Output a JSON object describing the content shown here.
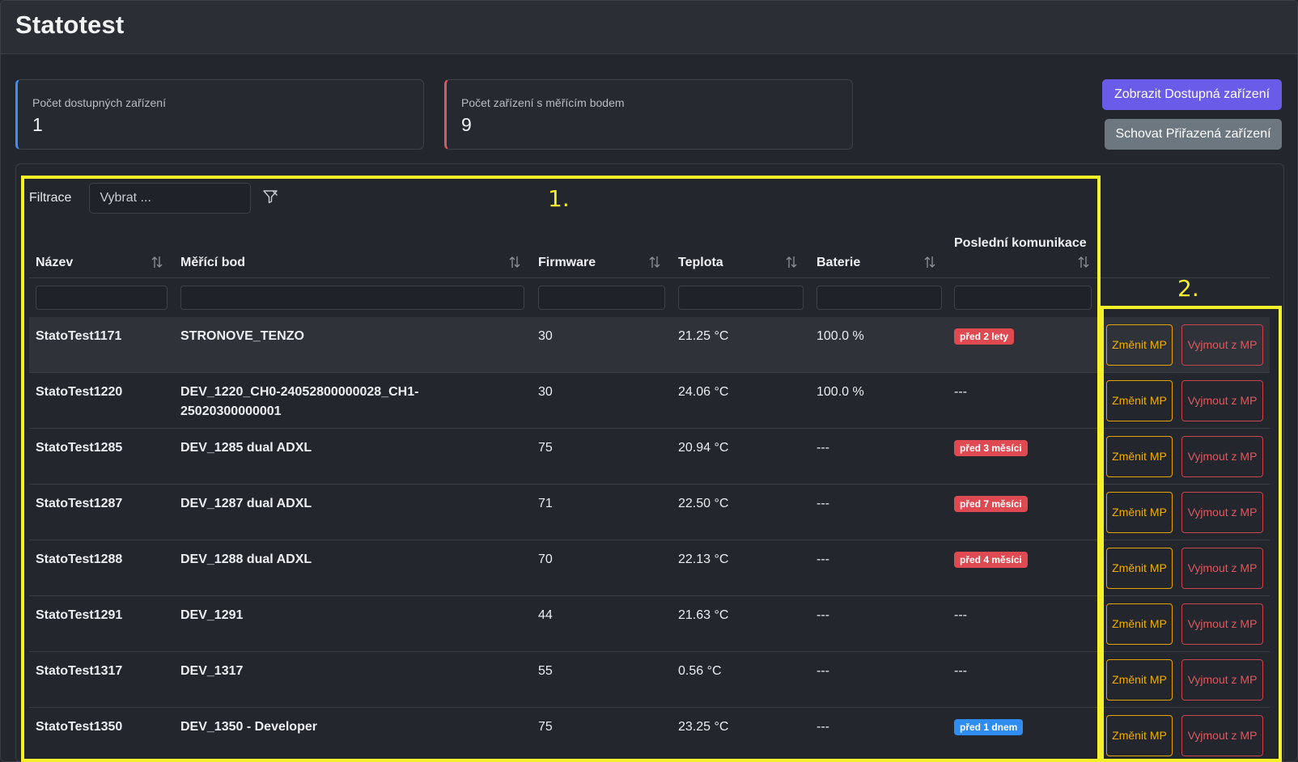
{
  "app": {
    "title": "Statotest"
  },
  "stats": [
    {
      "label": "Počet dostupných zařízení",
      "value": "1"
    },
    {
      "label": "Počet zařízení s měřícím bodem",
      "value": "9"
    }
  ],
  "actions": {
    "show_available": "Zobrazit Dostupná zařízení",
    "hide_assigned": "Schovat Přiřazená zařízení"
  },
  "filter": {
    "label": "Filtrace",
    "placeholder": "Vybrat ..."
  },
  "annotations": {
    "marker1": "1.",
    "marker2": "2."
  },
  "table": {
    "columns": [
      "Název",
      "Měřící bod",
      "Firmware",
      "Teplota",
      "Baterie",
      "Poslední komunikace"
    ],
    "rows": [
      {
        "name": "StatoTest1171",
        "point": "STRONOVE_TENZO",
        "firmware": "30",
        "temp": "21.25 °C",
        "battery": "100.0 %",
        "last": "před 2 lety",
        "last_type": "red"
      },
      {
        "name": "StatoTest1220",
        "point": "DEV_1220_CH0-24052800000028_CH1-25020300000001",
        "firmware": "30",
        "temp": "24.06 °C",
        "battery": "100.0 %",
        "last": "---",
        "last_type": "text"
      },
      {
        "name": "StatoTest1285",
        "point": "DEV_1285 dual ADXL",
        "firmware": "75",
        "temp": "20.94 °C",
        "battery": "---",
        "last": "před 3 měsíci",
        "last_type": "red"
      },
      {
        "name": "StatoTest1287",
        "point": "DEV_1287 dual ADXL",
        "firmware": "71",
        "temp": "22.50 °C",
        "battery": "---",
        "last": "před 7 měsíci",
        "last_type": "red"
      },
      {
        "name": "StatoTest1288",
        "point": "DEV_1288 dual ADXL",
        "firmware": "70",
        "temp": "22.13 °C",
        "battery": "---",
        "last": "před 4 měsíci",
        "last_type": "red"
      },
      {
        "name": "StatoTest1291",
        "point": "DEV_1291",
        "firmware": "44",
        "temp": "21.63 °C",
        "battery": "---",
        "last": "---",
        "last_type": "text"
      },
      {
        "name": "StatoTest1317",
        "point": "DEV_1317",
        "firmware": "55",
        "temp": "0.56 °C",
        "battery": "---",
        "last": "---",
        "last_type": "text"
      },
      {
        "name": "StatoTest1350",
        "point": "DEV_1350 - Developer",
        "firmware": "75",
        "temp": "23.25 °C",
        "battery": "---",
        "last": "před 1 dnem",
        "last_type": "blue"
      }
    ],
    "row_actions": {
      "change": "Změnit MP",
      "remove": "Vyjmout z MP"
    }
  },
  "colors": {
    "accent": "#6a5ce8",
    "secondary": "#6c7780",
    "warning": "#f1ad00",
    "danger": "#e0575f",
    "info": "#2f8cf0",
    "highlight": "#f4f02a"
  },
  "icons": {
    "filter": "filter-icon",
    "sort": "sort-icon"
  }
}
